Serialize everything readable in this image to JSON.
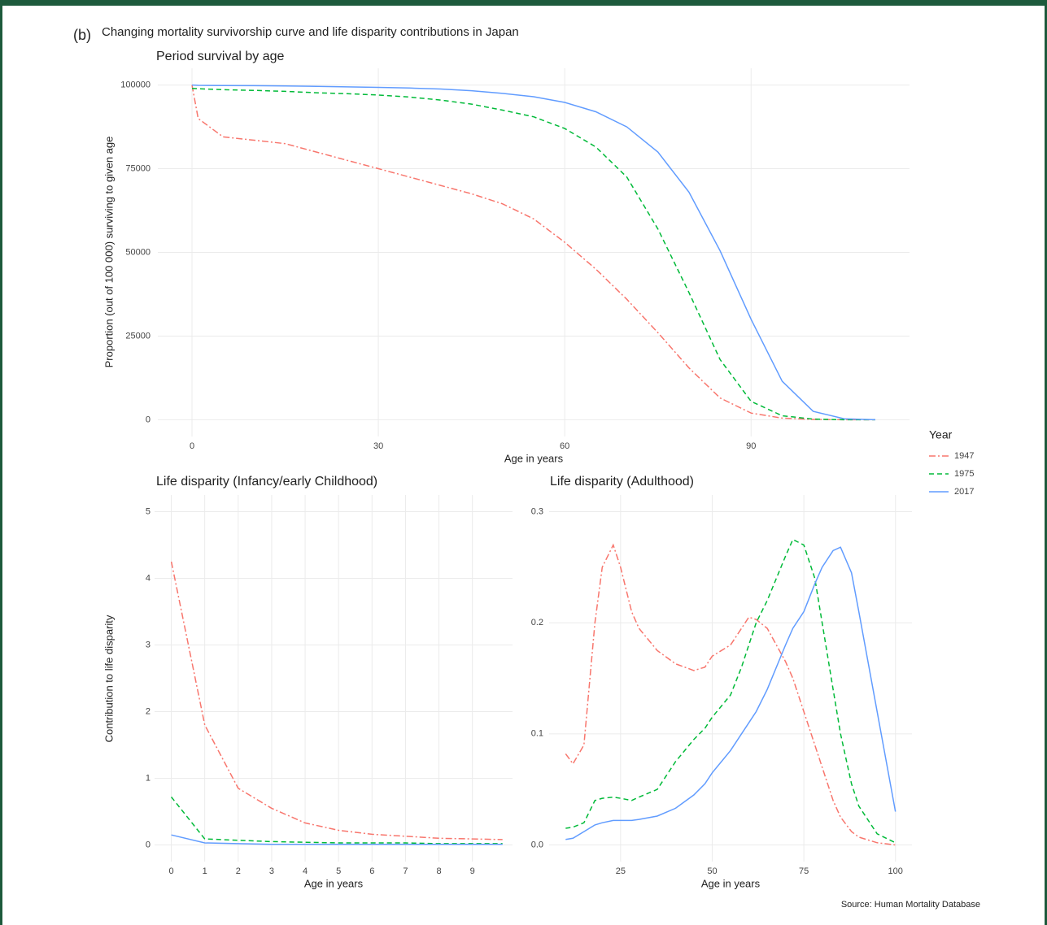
{
  "figure": {
    "label": "(b)",
    "title": "Changing mortality survivorship curve and life disparity contributions in Japan",
    "legend_title": "Year",
    "legend_position": "right",
    "source": "Source: Human Mortality Database"
  },
  "chart_data": [
    {
      "type": "line",
      "title": "Period survival by age",
      "x_label": "Age in years",
      "y_label": "Proportion (out of 100 000) surviving to given age",
      "x": [
        0,
        1,
        5,
        10,
        15,
        20,
        25,
        30,
        35,
        40,
        45,
        50,
        55,
        60,
        65,
        70,
        75,
        80,
        85,
        90,
        95,
        100,
        105,
        110
      ],
      "series": [
        {
          "name": "1947",
          "color": "#F8766D",
          "dash": "8 3 2 3",
          "values": [
            100000,
            90000,
            84500,
            83500,
            82500,
            80000,
            77500,
            75000,
            72500,
            70000,
            67500,
            64500,
            60000,
            53000,
            45000,
            36000,
            26000,
            15500,
            6500,
            2000,
            500,
            100,
            0,
            0
          ]
        },
        {
          "name": "1975",
          "color": "#00BA38",
          "dash": "6 4",
          "values": [
            99000,
            98900,
            98600,
            98400,
            98100,
            97700,
            97400,
            97000,
            96400,
            95500,
            94300,
            92500,
            90500,
            87000,
            81500,
            72500,
            57000,
            38000,
            18000,
            5500,
            1200,
            200,
            0,
            0
          ]
        },
        {
          "name": "2017",
          "color": "#619CFF",
          "dash": "none",
          "values": [
            100000,
            99900,
            99850,
            99800,
            99700,
            99600,
            99450,
            99300,
            99100,
            98800,
            98300,
            97500,
            96500,
            94800,
            92000,
            87500,
            80000,
            68000,
            50500,
            30000,
            11500,
            2500,
            300,
            0
          ]
        }
      ],
      "xlim": [
        -5.5,
        115.5
      ],
      "ylim": [
        -5000,
        105000
      ],
      "xticks": [
        0,
        30,
        60,
        90
      ],
      "yticks": [
        0,
        25000,
        50000,
        75000,
        100000
      ],
      "grid": true
    },
    {
      "type": "line",
      "title": "Life disparity (Infancy/early Childhood)",
      "x_label": "Age in years",
      "y_label": "Contribution to life disparity",
      "x": [
        0,
        1,
        2,
        3,
        4,
        5,
        6,
        7,
        8,
        9,
        9.9
      ],
      "series": [
        {
          "name": "1947",
          "color": "#F8766D",
          "dash": "8 3 2 3",
          "values": [
            4.25,
            1.8,
            0.85,
            0.55,
            0.33,
            0.22,
            0.16,
            0.13,
            0.1,
            0.09,
            0.08
          ]
        },
        {
          "name": "1975",
          "color": "#00BA38",
          "dash": "6 4",
          "values": [
            0.72,
            0.09,
            0.07,
            0.05,
            0.04,
            0.03,
            0.03,
            0.03,
            0.02,
            0.02,
            0.02
          ]
        },
        {
          "name": "2017",
          "color": "#619CFF",
          "dash": "none",
          "values": [
            0.15,
            0.03,
            0.02,
            0.01,
            0.01,
            0.01,
            0.01,
            0.01,
            0.01,
            0.01,
            0.01
          ]
        }
      ],
      "xlim": [
        -0.5,
        10.2
      ],
      "ylim": [
        -0.25,
        5.25
      ],
      "xticks": [
        0,
        1,
        2,
        3,
        4,
        5,
        6,
        7,
        8,
        9
      ],
      "yticks": [
        0,
        1,
        2,
        3,
        4,
        5
      ],
      "grid": true
    },
    {
      "type": "line",
      "title": "Life disparity (Adulthood)",
      "x_label": "Age in years",
      "x": [
        10,
        12,
        15,
        18,
        20,
        23,
        25,
        28,
        30,
        35,
        40,
        45,
        48,
        50,
        55,
        58,
        60,
        62,
        65,
        70,
        72,
        75,
        78,
        80,
        83,
        85,
        88,
        90,
        95,
        100
      ],
      "series": [
        {
          "name": "1947",
          "color": "#F8766D",
          "dash": "8 3 2 3",
          "values": [
            0.082,
            0.073,
            0.09,
            0.2,
            0.25,
            0.27,
            0.25,
            0.21,
            0.195,
            0.175,
            0.163,
            0.157,
            0.16,
            0.17,
            0.18,
            0.195,
            0.205,
            0.203,
            0.195,
            0.165,
            0.15,
            0.12,
            0.09,
            0.07,
            0.04,
            0.025,
            0.012,
            0.007,
            0.002,
            0
          ]
        },
        {
          "name": "1975",
          "color": "#00BA38",
          "dash": "6 4",
          "values": [
            0.015,
            0.016,
            0.02,
            0.04,
            0.042,
            0.043,
            0.042,
            0.04,
            0.043,
            0.05,
            0.075,
            0.095,
            0.105,
            0.115,
            0.135,
            0.16,
            0.18,
            0.2,
            0.22,
            0.26,
            0.275,
            0.27,
            0.24,
            0.2,
            0.14,
            0.1,
            0.055,
            0.035,
            0.01,
            0.002
          ]
        },
        {
          "name": "2017",
          "color": "#619CFF",
          "dash": "none",
          "values": [
            0.005,
            0.006,
            0.012,
            0.018,
            0.02,
            0.022,
            0.022,
            0.022,
            0.023,
            0.026,
            0.033,
            0.045,
            0.055,
            0.065,
            0.085,
            0.1,
            0.11,
            0.12,
            0.14,
            0.18,
            0.195,
            0.21,
            0.235,
            0.25,
            0.265,
            0.268,
            0.245,
            0.21,
            0.12,
            0.03
          ]
        }
      ],
      "xlim": [
        5.5,
        104.5
      ],
      "ylim": [
        -0.015,
        0.315
      ],
      "xticks": [
        25,
        50,
        75,
        100
      ],
      "yticks": [
        {
          "value": 0,
          "label": "0.0"
        },
        0.1,
        0.2,
        0.3
      ],
      "grid": true
    }
  ]
}
